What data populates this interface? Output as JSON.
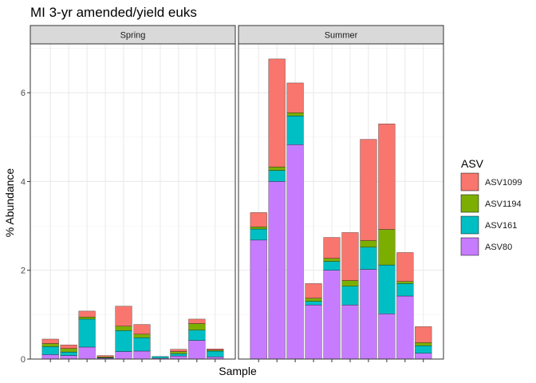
{
  "chart_data": {
    "type": "bar",
    "stacked": true,
    "title": "MI 3-yr amended/yield euks",
    "xlabel": "Sample",
    "ylabel": "% Abundance",
    "ylim": [
      0,
      7.1
    ],
    "yticks": [
      0,
      2,
      4,
      6
    ],
    "grid": true,
    "legend_title": "ASV",
    "legend_position": "right",
    "series": [
      {
        "name": "ASV1099",
        "color": "#F8766D"
      },
      {
        "name": "ASV1194",
        "color": "#7CAE00"
      },
      {
        "name": "ASV161",
        "color": "#00BFC4"
      },
      {
        "name": "ASV80",
        "color": "#C77CFF"
      }
    ],
    "facets": [
      {
        "label": "Spring",
        "bars": [
          {
            "ASV80": 0.1,
            "ASV161": 0.18,
            "ASV1194": 0.07,
            "ASV1099": 0.1
          },
          {
            "ASV80": 0.08,
            "ASV161": 0.08,
            "ASV1194": 0.08,
            "ASV1099": 0.08
          },
          {
            "ASV80": 0.27,
            "ASV161": 0.63,
            "ASV1194": 0.05,
            "ASV1099": 0.13
          },
          {
            "ASV80": 0.02,
            "ASV161": 0.01,
            "ASV1194": 0.02,
            "ASV1099": 0.03
          },
          {
            "ASV80": 0.17,
            "ASV161": 0.47,
            "ASV1194": 0.1,
            "ASV1099": 0.45
          },
          {
            "ASV80": 0.18,
            "ASV161": 0.3,
            "ASV1194": 0.08,
            "ASV1099": 0.22
          },
          {
            "ASV80": 0.02,
            "ASV161": 0.04,
            "ASV1194": 0.0,
            "ASV1099": 0.0
          },
          {
            "ASV80": 0.07,
            "ASV161": 0.05,
            "ASV1194": 0.05,
            "ASV1099": 0.05
          },
          {
            "ASV80": 0.42,
            "ASV161": 0.23,
            "ASV1194": 0.15,
            "ASV1099": 0.1
          },
          {
            "ASV80": 0.05,
            "ASV161": 0.13,
            "ASV1194": 0.02,
            "ASV1099": 0.03
          }
        ]
      },
      {
        "label": "Summer",
        "bars": [
          {
            "ASV80": 2.68,
            "ASV161": 0.25,
            "ASV1194": 0.05,
            "ASV1099": 0.32
          },
          {
            "ASV80": 4.0,
            "ASV161": 0.25,
            "ASV1194": 0.08,
            "ASV1099": 2.43
          },
          {
            "ASV80": 4.83,
            "ASV161": 0.65,
            "ASV1194": 0.07,
            "ASV1099": 0.67
          },
          {
            "ASV80": 1.22,
            "ASV161": 0.08,
            "ASV1194": 0.07,
            "ASV1099": 0.33
          },
          {
            "ASV80": 2.0,
            "ASV161": 0.2,
            "ASV1194": 0.07,
            "ASV1099": 0.47
          },
          {
            "ASV80": 1.22,
            "ASV161": 0.42,
            "ASV1194": 0.13,
            "ASV1099": 1.08
          },
          {
            "ASV80": 2.02,
            "ASV161": 0.5,
            "ASV1194": 0.15,
            "ASV1099": 2.28
          },
          {
            "ASV80": 1.02,
            "ASV161": 1.1,
            "ASV1194": 0.8,
            "ASV1099": 2.38
          },
          {
            "ASV80": 1.42,
            "ASV161": 0.28,
            "ASV1194": 0.05,
            "ASV1099": 0.65
          },
          {
            "ASV80": 0.13,
            "ASV161": 0.17,
            "ASV1194": 0.07,
            "ASV1099": 0.36
          }
        ]
      }
    ]
  }
}
